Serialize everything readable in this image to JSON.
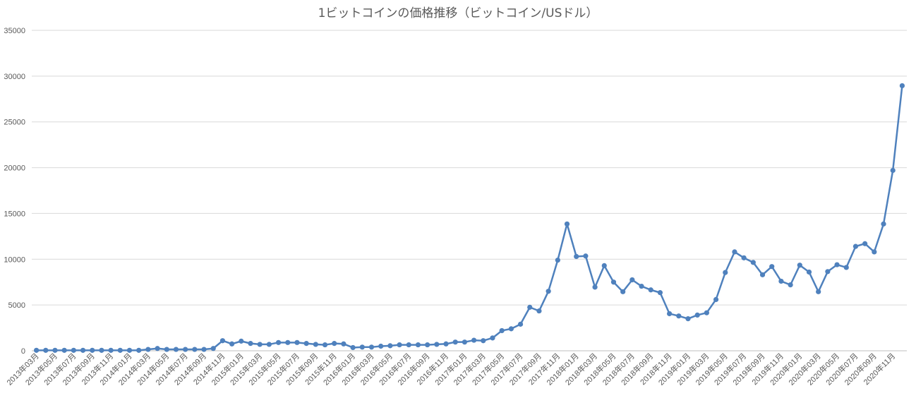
{
  "chart_data": {
    "type": "line",
    "title": "1ビットコインの価格推移（ビットコイン/USドル）",
    "xlabel": "",
    "ylabel": "",
    "ylim": [
      0,
      35000
    ],
    "yticks": [
      0,
      5000,
      10000,
      15000,
      20000,
      25000,
      30000,
      35000
    ],
    "grid": true,
    "legend": "none",
    "line_color": "#4f81bd",
    "x": [
      "2013年03月",
      "2013年04月",
      "2013年05月",
      "2013年06月",
      "2013年07月",
      "2013年08月",
      "2013年09月",
      "2013年10月",
      "2013年11月",
      "2013年12月",
      "2014年01月",
      "2014年02月",
      "2014年03月",
      "2014年04月",
      "2014年05月",
      "2014年06月",
      "2014年07月",
      "2014年08月",
      "2014年09月",
      "2014年10月",
      "2014年11月",
      "2014年12月",
      "2015年01月",
      "2015年02月",
      "2015年03月",
      "2015年04月",
      "2015年05月",
      "2015年06月",
      "2015年07月",
      "2015年08月",
      "2015年09月",
      "2015年10月",
      "2015年11月",
      "2015年12月",
      "2016年01月",
      "2016年02月",
      "2016年03月",
      "2016年04月",
      "2016年05月",
      "2016年06月",
      "2016年07月",
      "2016年08月",
      "2016年09月",
      "2016年10月",
      "2016年11月",
      "2016年12月",
      "2017年01月",
      "2017年02月",
      "2017年03月",
      "2017年04月",
      "2017年05月",
      "2017年06月",
      "2017年07月",
      "2017年08月",
      "2017年09月",
      "2017年10月",
      "2017年11月",
      "2017年12月",
      "2018年01月",
      "2018年02月",
      "2018年03月",
      "2018年04月",
      "2018年05月",
      "2018年06月",
      "2018年07月",
      "2018年08月",
      "2018年09月",
      "2018年10月",
      "2018年11月",
      "2018年12月",
      "2019年01月",
      "2019年02月",
      "2019年03月",
      "2019年04月",
      "2019年05月",
      "2019年06月",
      "2019年07月",
      "2019年08月",
      "2019年09月",
      "2019年10月",
      "2019年11月",
      "2019年12月",
      "2020年01月",
      "2020年02月",
      "2020年03月",
      "2020年04月",
      "2020年05月",
      "2020年06月",
      "2020年07月",
      "2020年08月",
      "2020年09月",
      "2020年10月",
      "2020年11月",
      "2020年12月"
    ],
    "x_labels_shown": [
      "2013年03月",
      "2013年05月",
      "2013年07月",
      "2013年09月",
      "2013年11月",
      "2014年01月",
      "2014年03月",
      "2014年05月",
      "2014年07月",
      "2014年09月",
      "2014年11月",
      "2015年01月",
      "2015年03月",
      "2015年05月",
      "2015年07月",
      "2015年09月",
      "2015年11月",
      "2016年01月",
      "2016年03月",
      "2016年05月",
      "2016年07月",
      "2016年09月",
      "2016年11月",
      "2017年01月",
      "2017年03月",
      "2017年05月",
      "2017年07月",
      "2017年09月",
      "2017年11月",
      "2018年01月",
      "2018年03月",
      "2018年05月",
      "2018年07月",
      "2018年09月",
      "2018年11月",
      "2019年01月",
      "2019年03月",
      "2019年05月",
      "2019年07月",
      "2019年09月",
      "2019年11月",
      "2020年01月",
      "2020年03月",
      "2020年05月",
      "2020年07月",
      "2020年09月",
      "2020年11月"
    ],
    "series": [
      {
        "values": [
          50,
          50,
          50,
          50,
          50,
          50,
          50,
          50,
          50,
          50,
          50,
          50,
          150,
          250,
          150,
          150,
          150,
          150,
          150,
          250,
          1100,
          750,
          1050,
          800,
          700,
          700,
          900,
          900,
          900,
          800,
          700,
          650,
          800,
          750,
          350,
          400,
          400,
          500,
          550,
          650,
          650,
          650,
          650,
          700,
          750,
          950,
          950,
          1150,
          1100,
          1400,
          2200,
          2400,
          2900,
          4750,
          4350,
          6500,
          9900,
          13850,
          10300,
          10350,
          6950,
          9300,
          7500,
          6450,
          7750,
          7050,
          6650,
          6350,
          4050,
          3800,
          3500,
          3900,
          4150,
          5600,
          8550,
          10800,
          10150,
          9650,
          8300,
          9200,
          7600,
          7200,
          9350,
          8600,
          6450,
          8650,
          9400,
          9100,
          11400,
          11700,
          10800,
          13850,
          19700,
          28950
        ]
      }
    ]
  }
}
